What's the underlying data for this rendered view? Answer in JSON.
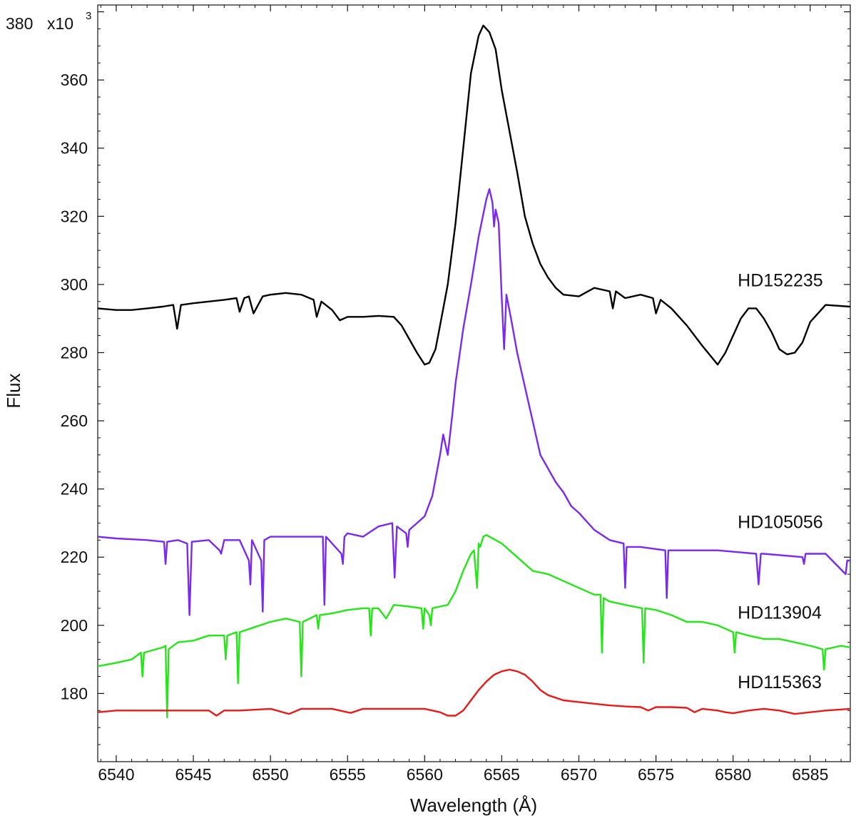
{
  "chart_data": {
    "type": "line",
    "title": "",
    "xlabel": "Wavelength (Å)",
    "ylabel": "Flux",
    "y_multiplier_label": "x10",
    "y_multiplier_exponent": "3",
    "xlim": [
      6538.8,
      6587.6
    ],
    "ylim": [
      160,
      382
    ],
    "xticks": [
      6540,
      6545,
      6550,
      6555,
      6560,
      6565,
      6570,
      6575,
      6580,
      6585
    ],
    "xtick_labels": [
      "6540",
      "6545",
      "6550",
      "6555",
      "6560",
      "6565",
      "6570",
      "6575",
      "6580",
      "6585"
    ],
    "yticks": [
      180,
      200,
      220,
      240,
      260,
      280,
      300,
      320,
      340,
      360,
      380
    ],
    "ytick_labels": [
      "180",
      "200",
      "220",
      "240",
      "260",
      "280",
      "300",
      "320",
      "340",
      "360",
      "380"
    ],
    "grid": false,
    "legend": "none",
    "series": [
      {
        "name": "HD152235",
        "color": "#000000",
        "label_anchor": [
          6580.3,
          299.5
        ],
        "x": [
          6538.8,
          6540,
          6541,
          6542,
          6543,
          6543.7,
          6543.95,
          6544.2,
          6545,
          6546,
          6547,
          6547.8,
          6548,
          6548.3,
          6548.6,
          6548.9,
          6549.5,
          6550,
          6551,
          6552,
          6552.8,
          6553,
          6553.3,
          6554,
          6554.5,
          6555,
          6556,
          6557,
          6558,
          6558.5,
          6559,
          6559.5,
          6560,
          6560.3,
          6560.7,
          6561,
          6561.5,
          6562,
          6562.5,
          6563,
          6563.5,
          6563.8,
          6564.2,
          6564.6,
          6565,
          6565.5,
          6566,
          6566.5,
          6567,
          6567.5,
          6568,
          6568.5,
          6569,
          6570,
          6571,
          6572,
          6572.2,
          6572.4,
          6573,
          6574,
          6574.8,
          6575,
          6575.3,
          6576,
          6577,
          6578,
          6579,
          6579.5,
          6580,
          6580.5,
          6581,
          6581.5,
          6582,
          6582.5,
          6583,
          6583.5,
          6584,
          6584.5,
          6585,
          6586,
          6587.6
        ],
        "y": [
          293,
          292.5,
          292.5,
          293,
          293.5,
          294,
          287,
          294,
          294.5,
          295,
          295.5,
          296,
          292,
          296,
          296.5,
          291.5,
          296.5,
          297,
          297.5,
          297,
          295.5,
          290.5,
          295,
          292.5,
          289.5,
          290.5,
          290.5,
          290.8,
          290.5,
          288,
          284,
          280,
          276.5,
          277,
          281,
          288,
          300,
          318,
          340,
          362,
          373,
          376,
          374,
          369,
          357,
          345,
          333,
          320,
          312,
          306,
          302,
          299,
          297,
          296.5,
          299,
          298,
          293,
          298,
          296,
          297,
          296,
          291.5,
          295.5,
          293,
          288,
          282,
          276.5,
          280,
          285,
          290,
          293,
          293,
          290,
          286,
          281,
          279.5,
          280,
          283,
          289,
          294,
          293.5
        ]
      },
      {
        "name": "HD105056",
        "color": "#7a2af0",
        "label_anchor": [
          6580.3,
          228.5
        ],
        "x": [
          6538.8,
          6540,
          6542,
          6543.1,
          6543.2,
          6543.3,
          6544,
          6544.6,
          6544.75,
          6544.9,
          6546,
          6546.7,
          6546.8,
          6547,
          6548,
          6548.6,
          6548.7,
          6548.8,
          6549.4,
          6549.5,
          6549.6,
          6550,
          6552,
          6553.4,
          6553.5,
          6553.6,
          6554.6,
          6554.7,
          6554.8,
          6555,
          6556,
          6557,
          6557.9,
          6558.05,
          6558.2,
          6558.8,
          6558.9,
          6559,
          6559.5,
          6560,
          6560.5,
          6561,
          6561.2,
          6561.5,
          6561.8,
          6562,
          6562.5,
          6563,
          6563.5,
          6564,
          6564.2,
          6564.4,
          6564.5,
          6564.6,
          6564.8,
          6565,
          6565.15,
          6565.3,
          6565.6,
          6566,
          6566.5,
          6567,
          6567.5,
          6568,
          6568.5,
          6569,
          6569.5,
          6570,
          6571,
          6572,
          6572.9,
          6573,
          6573.1,
          6574,
          6575.6,
          6575.7,
          6575.8,
          6577,
          6579,
          6581.5,
          6581.65,
          6581.8,
          6582,
          6584.5,
          6584.6,
          6584.7,
          6586,
          6587.3,
          6587.4,
          6587.6
        ],
        "y": [
          226,
          225.5,
          225,
          224.5,
          218,
          224.5,
          225,
          224,
          203,
          224.5,
          225,
          222,
          221,
          225,
          225,
          219,
          212,
          225,
          219,
          204,
          225,
          226,
          226,
          226,
          206,
          226,
          221,
          218,
          226,
          227,
          226,
          229,
          230,
          214,
          229,
          227,
          223,
          228,
          230,
          232,
          238,
          250,
          256,
          250,
          262,
          271,
          287,
          300,
          314,
          325,
          328,
          324,
          317,
          322,
          318,
          296,
          281,
          297,
          290,
          280,
          270,
          260,
          250,
          246,
          242,
          239,
          235,
          233,
          228,
          225,
          224,
          211,
          223,
          223,
          222,
          208,
          222,
          222,
          222,
          221,
          212,
          221,
          221,
          220,
          218,
          221,
          221,
          215,
          219,
          219
        ]
      },
      {
        "name": "HD113904",
        "color": "#26e619",
        "label_anchor": [
          6580.3,
          202
        ],
        "x": [
          6538.8,
          6540,
          6541,
          6541.6,
          6541.7,
          6541.8,
          6543,
          6543.2,
          6543.3,
          6543.4,
          6544,
          6545,
          6546,
          6547,
          6547.1,
          6547.2,
          6547.8,
          6547.9,
          6548,
          6549,
          6550,
          6551,
          6551.9,
          6552,
          6552.1,
          6553,
          6553.1,
          6553.2,
          6554,
          6555,
          6556,
          6556.4,
          6556.5,
          6556.6,
          6557,
          6557.5,
          6558,
          6559,
          6559.8,
          6559.9,
          6560,
          6560.3,
          6560.4,
          6560.5,
          6561,
          6561.5,
          6562,
          6562.5,
          6563,
          6563.2,
          6563.4,
          6563.5,
          6563.6,
          6563.8,
          6564,
          6565,
          6566,
          6567,
          6568,
          6569,
          6570,
          6571,
          6571.4,
          6571.5,
          6571.6,
          6572,
          6573,
          6574.1,
          6574.2,
          6574.3,
          6575,
          6576,
          6577,
          6578,
          6579,
          6580,
          6580.1,
          6580.2,
          6581,
          6582,
          6583,
          6584,
          6585,
          6585.8,
          6585.9,
          6586,
          6587,
          6587.6
        ],
        "y": [
          188,
          189,
          190,
          192,
          185,
          192,
          193.5,
          194,
          173,
          193,
          195,
          195.5,
          197,
          197,
          190,
          197,
          198,
          183,
          198,
          199.5,
          201,
          202,
          201,
          185,
          201,
          203,
          199,
          203,
          203.5,
          204.5,
          205,
          205,
          197,
          205,
          205,
          202,
          206,
          205.5,
          205,
          199,
          205,
          203,
          200,
          205,
          205.5,
          206,
          210,
          216,
          221,
          222,
          211,
          224,
          223,
          226,
          226.5,
          224,
          220,
          216,
          215,
          213,
          211,
          209,
          209,
          192,
          208,
          207,
          206,
          205,
          189,
          205,
          204.5,
          203,
          201,
          201,
          200,
          198,
          192,
          198,
          197,
          196,
          196,
          195,
          194,
          193,
          187,
          193,
          194,
          193.5
        ]
      },
      {
        "name": "HD115363",
        "color": "#e81a1a",
        "label_anchor": [
          6580.3,
          181.5
        ],
        "x": [
          6538.8,
          6540,
          6542,
          6544,
          6546,
          6546.5,
          6547,
          6548,
          6550,
          6551.2,
          6552,
          6554,
          6555.2,
          6556,
          6558,
          6560,
          6561,
          6561.5,
          6562,
          6562.5,
          6563,
          6563.5,
          6564,
          6564.5,
          6565,
          6565.5,
          6566,
          6566.5,
          6567,
          6567.5,
          6568,
          6569,
          6570,
          6571,
          6572,
          6573,
          6574,
          6574.5,
          6575,
          6576,
          6577,
          6577.5,
          6578,
          6579,
          6579.5,
          6580,
          6581,
          6582,
          6583,
          6584,
          6585,
          6586,
          6587.6
        ],
        "y": [
          174.5,
          175,
          175,
          175,
          175,
          173.5,
          175,
          175,
          175.5,
          174,
          175.5,
          175.5,
          174.3,
          175.5,
          175.5,
          175.5,
          174.5,
          173.5,
          173.5,
          175,
          178,
          181,
          183.5,
          185.5,
          186.5,
          187,
          186.5,
          185.5,
          183.5,
          181,
          179.5,
          178,
          177.5,
          177,
          176.5,
          176.2,
          176,
          175,
          176,
          176,
          175.8,
          174.5,
          175.5,
          175,
          174.5,
          174.2,
          175,
          175.5,
          175,
          174,
          174.5,
          175,
          175.5
        ]
      }
    ]
  }
}
